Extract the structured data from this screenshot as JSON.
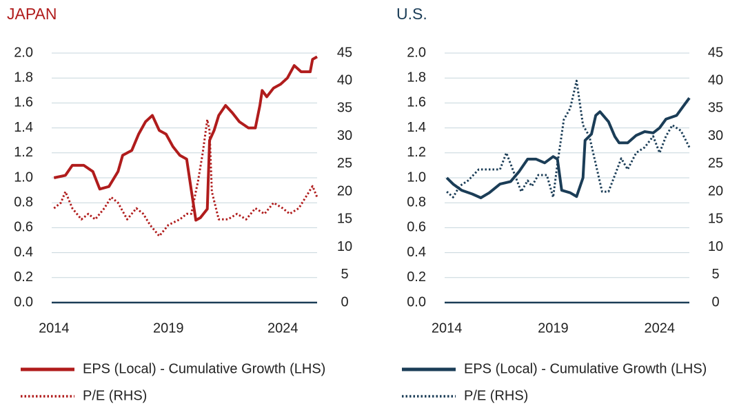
{
  "chart_data": [
    {
      "type": "line",
      "title": "JAPAN",
      "title_color": "#b01c1c",
      "xlim": [
        2013.9,
        2025.5
      ],
      "xticks": [
        2014,
        2019,
        2024
      ],
      "ylim": [
        0,
        2
      ],
      "yticks": [
        {
          "value": 0,
          "label": "0.0"
        },
        0.2,
        0.4,
        0.6,
        0.8,
        {
          "value": 1,
          "label": "1.0"
        },
        1.2,
        1.4,
        1.6,
        1.8,
        {
          "value": 2,
          "label": "2.0"
        }
      ],
      "y2lim": [
        0,
        45
      ],
      "y2ticks": [
        0,
        5,
        10,
        15,
        20,
        25,
        30,
        35,
        40,
        45
      ],
      "grid": true,
      "series": [
        {
          "name": "EPS (Local) - Cumulative Growth (LHS)",
          "color": "#b01c1c",
          "style": "solid",
          "x": [
            2014.0,
            2014.5,
            2014.8,
            2015.3,
            2015.7,
            2016.0,
            2016.4,
            2016.8,
            2017.0,
            2017.4,
            2017.7,
            2018.0,
            2018.3,
            2018.6,
            2018.9,
            2019.2,
            2019.5,
            2019.8,
            2020.0,
            2020.2,
            2020.4,
            2020.7,
            2020.8,
            2021.0,
            2021.2,
            2021.5,
            2021.8,
            2022.1,
            2022.5,
            2022.8,
            2023.0,
            2023.1,
            2023.3,
            2023.6,
            2023.9,
            2024.2,
            2024.5,
            2024.8,
            2025.2,
            2025.3,
            2025.5
          ],
          "values": [
            1.0,
            1.02,
            1.1,
            1.1,
            1.05,
            0.91,
            0.93,
            1.05,
            1.18,
            1.22,
            1.35,
            1.45,
            1.5,
            1.38,
            1.35,
            1.25,
            1.18,
            1.15,
            0.9,
            0.66,
            0.68,
            0.75,
            1.3,
            1.38,
            1.5,
            1.58,
            1.52,
            1.45,
            1.4,
            1.4,
            1.58,
            1.7,
            1.65,
            1.72,
            1.75,
            1.8,
            1.9,
            1.85,
            1.85,
            1.95,
            1.97
          ]
        },
        {
          "name": "P/E (RHS)",
          "color": "#b01c1c",
          "style": "dotted",
          "axis": "y2",
          "x": [
            2014.0,
            2014.3,
            2014.5,
            2014.8,
            2015.2,
            2015.5,
            2015.8,
            2016.2,
            2016.5,
            2016.8,
            2017.2,
            2017.6,
            2017.9,
            2018.2,
            2018.6,
            2019.0,
            2019.5,
            2019.8,
            2020.0,
            2020.3,
            2020.5,
            2020.7,
            2020.8,
            2020.9,
            2021.2,
            2021.6,
            2022.0,
            2022.4,
            2022.8,
            2023.2,
            2023.6,
            2024.0,
            2024.3,
            2024.7,
            2025.0,
            2025.3,
            2025.5
          ],
          "values": [
            17,
            18,
            20,
            17,
            15,
            16,
            15,
            17,
            19,
            18,
            15,
            17,
            16,
            14,
            12,
            14,
            15,
            16,
            16,
            22,
            27,
            33,
            31,
            20,
            15,
            15,
            16,
            15,
            17,
            16,
            18,
            17,
            16,
            17,
            19,
            21,
            19
          ]
        }
      ]
    },
    {
      "type": "line",
      "title": "U.S.",
      "title_color": "#1b3d57",
      "xlim": [
        2013.9,
        2025.4
      ],
      "xticks": [
        2014,
        2019,
        2024
      ],
      "ylim": [
        0,
        2
      ],
      "yticks": [
        {
          "value": 0,
          "label": "0.0"
        },
        0.2,
        0.4,
        0.6,
        0.8,
        {
          "value": 1,
          "label": "1.0"
        },
        1.2,
        1.4,
        1.6,
        1.8,
        {
          "value": 2,
          "label": "2.0"
        }
      ],
      "y2lim": [
        0,
        45
      ],
      "y2ticks": [
        0,
        5,
        10,
        15,
        20,
        25,
        30,
        35,
        40,
        45
      ],
      "grid": true,
      "series": [
        {
          "name": "EPS (Local) - Cumulative Growth (LHS)",
          "color": "#1b3d57",
          "style": "solid",
          "x": [
            2014.0,
            2014.3,
            2014.7,
            2015.2,
            2015.6,
            2016.0,
            2016.5,
            2017.0,
            2017.4,
            2017.8,
            2018.2,
            2018.6,
            2019.0,
            2019.2,
            2019.4,
            2019.8,
            2020.1,
            2020.4,
            2020.5,
            2020.8,
            2021.0,
            2021.2,
            2021.6,
            2021.9,
            2022.1,
            2022.5,
            2022.9,
            2023.3,
            2023.7,
            2024.0,
            2024.3,
            2024.8,
            2025.1,
            2025.4
          ],
          "values": [
            1.0,
            0.95,
            0.9,
            0.87,
            0.84,
            0.88,
            0.95,
            0.97,
            1.05,
            1.15,
            1.15,
            1.12,
            1.17,
            1.15,
            0.9,
            0.88,
            0.85,
            1.0,
            1.3,
            1.35,
            1.5,
            1.53,
            1.45,
            1.33,
            1.28,
            1.28,
            1.34,
            1.37,
            1.36,
            1.4,
            1.47,
            1.5,
            1.57,
            1.64
          ]
        },
        {
          "name": "P/E (RHS)",
          "color": "#1b3d57",
          "style": "dotted",
          "axis": "y2",
          "x": [
            2014.0,
            2014.3,
            2014.6,
            2015.0,
            2015.5,
            2016.0,
            2016.5,
            2016.8,
            2017.2,
            2017.5,
            2017.8,
            2018.0,
            2018.3,
            2018.7,
            2019.0,
            2019.2,
            2019.5,
            2019.8,
            2020.1,
            2020.4,
            2020.7,
            2021.0,
            2021.3,
            2021.6,
            2021.9,
            2022.2,
            2022.5,
            2022.9,
            2023.3,
            2023.7,
            2024.0,
            2024.3,
            2024.6,
            2025.0,
            2025.4
          ],
          "values": [
            20,
            19,
            21,
            22,
            24,
            24,
            24,
            27,
            23,
            20,
            22,
            21,
            23,
            23,
            19,
            25,
            33,
            35,
            40,
            32,
            30,
            25,
            20,
            20,
            23,
            26,
            24,
            27,
            28,
            30,
            27,
            30,
            32,
            31,
            28
          ]
        }
      ]
    }
  ]
}
